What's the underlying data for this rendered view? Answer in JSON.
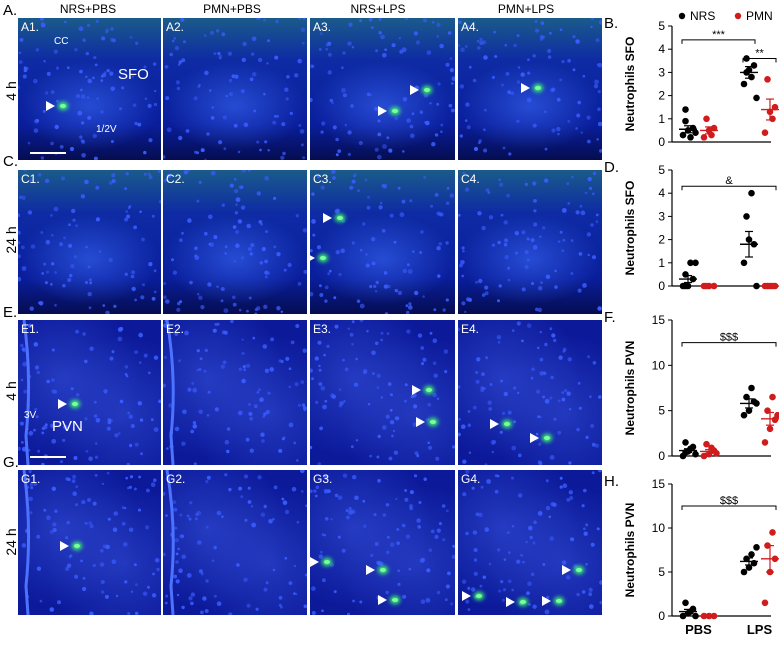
{
  "columns": [
    "NRS+PBS",
    "PMN+PBS",
    "NRS+LPS",
    "PMN+LPS"
  ],
  "rows": [
    {
      "letter": "A.",
      "time": "4 h",
      "panels": [
        "A1.",
        "A2.",
        "A3.",
        "A4."
      ]
    },
    {
      "letter": "C.",
      "time": "24 h",
      "panels": [
        "C1.",
        "C2.",
        "C3.",
        "C4."
      ]
    },
    {
      "letter": "E.",
      "time": "4 h",
      "panels": [
        "E1.",
        "E2.",
        "E3.",
        "E4."
      ]
    },
    {
      "letter": "G.",
      "time": "24 h",
      "panels": [
        "G1.",
        "G2.",
        "G3.",
        "G4."
      ]
    }
  ],
  "annotations": {
    "cc": "CC",
    "sfo": "SFO",
    "v": "1/2V",
    "v3": "3V",
    "pvn": "PVN"
  },
  "colors": {
    "nrs": "#000000",
    "pmn": "#d01c1c",
    "nuclei": "#0a1fa0",
    "fluor": "#3cff6a"
  },
  "chart_data": [
    {
      "type": "scatter",
      "panel": "B.",
      "ylabel": "Neutrophils SFO",
      "ylim": [
        0,
        5
      ],
      "yticks": [
        0,
        1,
        2,
        3,
        4,
        5
      ],
      "legend": [
        {
          "name": "NRS",
          "color": "#000000"
        },
        {
          "name": "PMN",
          "color": "#d01c1c"
        }
      ],
      "groups": [
        {
          "series": "NRS",
          "points": [
            0.3,
            0.5,
            0.6,
            0.9,
            0.2,
            0.4,
            1.4
          ],
          "mean": 0.55,
          "sem": 0.15
        },
        {
          "series": "PMN",
          "points": [
            0.2,
            0.5,
            0.6,
            1.0,
            0.3
          ],
          "mean": 0.5,
          "sem": 0.15
        },
        {
          "series": "NRS",
          "points": [
            2.5,
            3.1,
            3.3,
            3.6,
            2.8,
            1.9,
            3.0
          ],
          "mean": 3.0,
          "sem": 0.25
        },
        {
          "series": "PMN",
          "points": [
            0.4,
            1.3,
            1.5,
            2.7,
            1.0
          ],
          "mean": 1.4,
          "sem": 0.45
        }
      ],
      "brackets": [
        {
          "from": 0,
          "to": 2,
          "y": 4.4,
          "label": "***"
        },
        {
          "from": 2,
          "to": 3,
          "y": 3.6,
          "label": "**"
        }
      ]
    },
    {
      "type": "scatter",
      "panel": "D.",
      "ylabel": "Neutrophils SFO",
      "ylim": [
        0,
        5
      ],
      "yticks": [
        0,
        1,
        2,
        3,
        4,
        5
      ],
      "groups": [
        {
          "series": "NRS",
          "points": [
            0,
            0,
            0.3,
            0.5,
            1.0,
            1.0,
            0
          ],
          "mean": 0.3,
          "sem": 0.15
        },
        {
          "series": "PMN",
          "points": [
            0,
            0,
            0,
            0
          ],
          "mean": 0,
          "sem": 0
        },
        {
          "series": "NRS",
          "points": [
            1.0,
            2.0,
            1.8,
            3.0,
            4.0,
            0
          ],
          "mean": 1.8,
          "sem": 0.55
        },
        {
          "series": "PMN",
          "points": [
            0,
            0,
            0,
            0,
            0
          ],
          "mean": 0,
          "sem": 0
        }
      ],
      "brackets": [
        {
          "from": 0,
          "to": 3,
          "y": 4.3,
          "label": "&"
        }
      ]
    },
    {
      "type": "scatter",
      "panel": "F.",
      "ylabel": "Neutrophils PVN",
      "ylim": [
        0,
        15
      ],
      "yticks": [
        0,
        5,
        10,
        15
      ],
      "groups": [
        {
          "series": "NRS",
          "points": [
            0,
            0.5,
            1.0,
            1.5,
            0.8,
            0.2,
            0.4
          ],
          "mean": 0.6,
          "sem": 0.2
        },
        {
          "series": "PMN",
          "points": [
            0,
            0.2,
            0.6,
            1.3,
            0.9,
            0.3
          ],
          "mean": 0.5,
          "sem": 0.2
        },
        {
          "series": "NRS",
          "points": [
            4.5,
            5.0,
            6.0,
            6.5,
            7.5,
            5.8
          ],
          "mean": 5.8,
          "sem": 0.5
        },
        {
          "series": "PMN",
          "points": [
            1.5,
            3.0,
            4.0,
            5.0,
            6.5,
            4.5
          ],
          "mean": 4.1,
          "sem": 0.7
        }
      ],
      "brackets": [
        {
          "from": 0,
          "to": 3,
          "y": 12.5,
          "label": "$$$"
        }
      ]
    },
    {
      "type": "scatter",
      "panel": "H.",
      "ylabel": "Neutrophils PVN",
      "ylim": [
        0,
        15
      ],
      "yticks": [
        0,
        5,
        10,
        15
      ],
      "xticks": [
        "PBS",
        "LPS"
      ],
      "groups": [
        {
          "series": "NRS",
          "points": [
            0,
            0.3,
            0.8,
            1.5,
            0.5,
            0
          ],
          "mean": 0.5,
          "sem": 0.25
        },
        {
          "series": "PMN",
          "points": [
            0,
            0,
            0
          ],
          "mean": 0,
          "sem": 0
        },
        {
          "series": "NRS",
          "points": [
            5.0,
            5.5,
            6.0,
            6.5,
            7.0,
            7.8
          ],
          "mean": 6.2,
          "sem": 0.4
        },
        {
          "series": "PMN",
          "points": [
            1.5,
            5.0,
            6.5,
            8.0,
            9.5
          ],
          "mean": 6.5,
          "sem": 1.5
        }
      ],
      "brackets": [
        {
          "from": 0,
          "to": 3,
          "y": 12.5,
          "label": "$$$"
        }
      ]
    }
  ]
}
